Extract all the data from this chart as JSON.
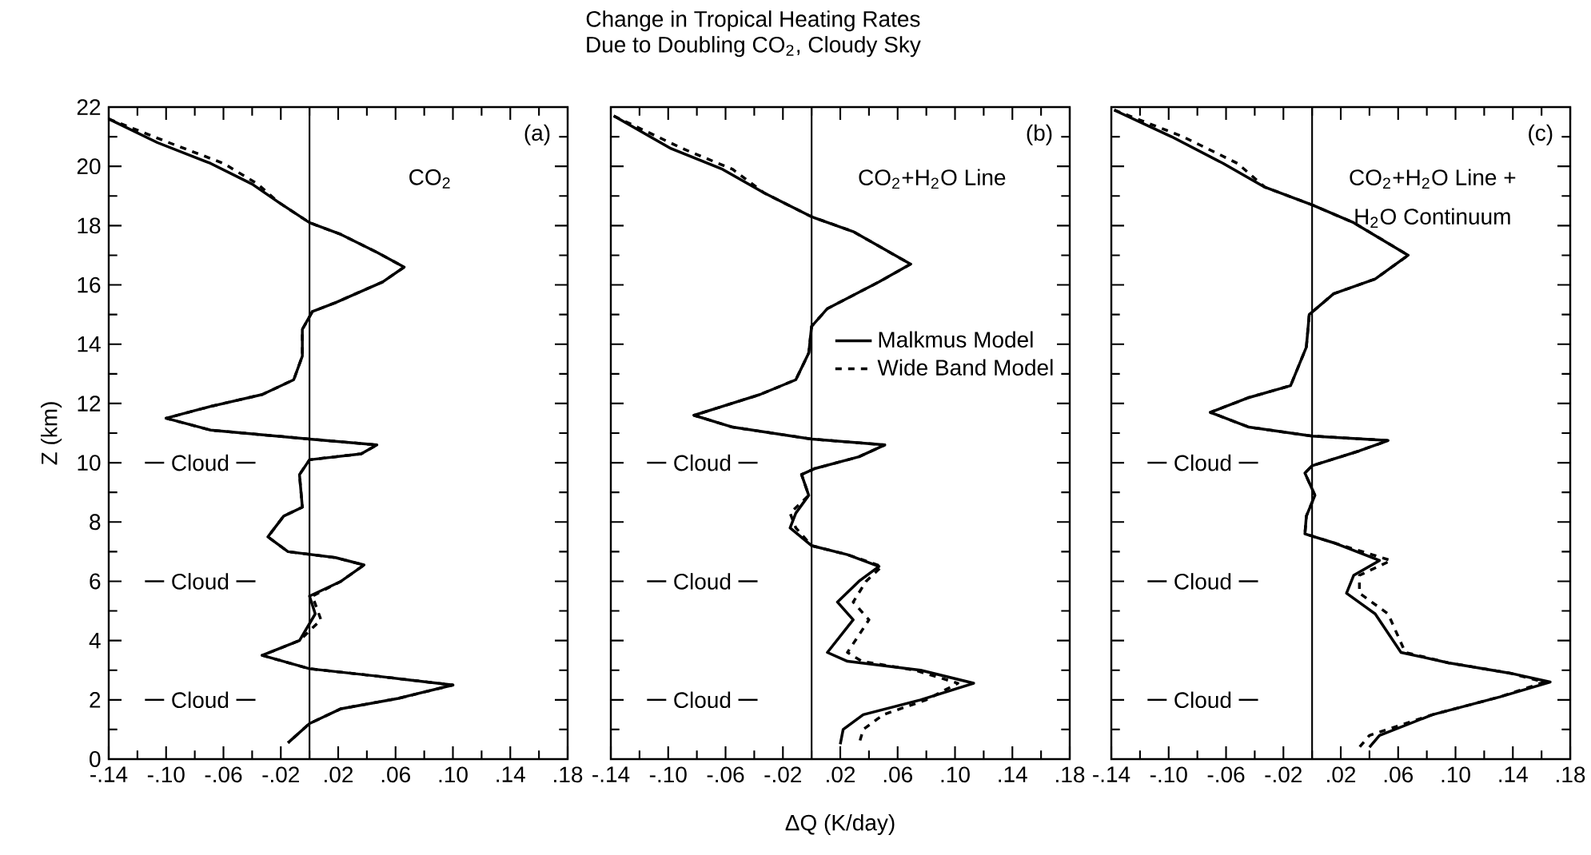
{
  "chart_data": [
    {
      "type": "line",
      "ylabel": "Z (km)",
      "xlim": [
        -0.14,
        0.18
      ],
      "ylim": [
        0,
        22
      ],
      "xticks": [
        {
          "value": -0.14,
          "label": "-.14"
        },
        {
          "value": -0.1,
          "label": "-.10"
        },
        {
          "value": -0.06,
          "label": "-.06"
        },
        {
          "value": -0.02,
          "label": "-.02"
        },
        {
          "value": 0.02,
          "label": ".02"
        },
        {
          "value": 0.06,
          "label": ".06"
        },
        {
          "value": 0.1,
          "label": ".10"
        },
        {
          "value": 0.14,
          "label": ".14"
        },
        {
          "value": 0.18,
          "label": ".18"
        }
      ],
      "yticks": [
        0,
        2,
        4,
        6,
        8,
        10,
        12,
        14,
        16,
        18,
        20,
        22
      ],
      "ref_lines": [
        {
          "axis": "x",
          "value": 0
        },
        {
          "axis": "y",
          "value": 10,
          "label": "Cloud"
        },
        {
          "axis": "y",
          "value": 6,
          "label": "Cloud"
        },
        {
          "axis": "y",
          "value": 2,
          "label": "Cloud"
        }
      ],
      "annotations": [
        "(a)",
        "CO$_{2}$"
      ],
      "series": [
        {
          "color": "#000000",
          "line_style": "solid",
          "x": [
            -0.14,
            -0.106,
            -0.069,
            -0.04,
            -0.022,
            0,
            0.022,
            0.047,
            0.066,
            0.051,
            0.018,
            0.002,
            -0.005,
            -0.005,
            -0.011,
            -0.033,
            -0.069,
            -0.1,
            -0.069,
            0,
            0.047,
            0.036,
            0,
            -0.007,
            -0.005,
            -0.018,
            -0.029,
            -0.015,
            0.018,
            0.038,
            0.022,
            0,
            0.004,
            -0.007,
            -0.033,
            0,
            0.047,
            0.1,
            0.062,
            0.022,
            0,
            -0.015
          ],
          "values": [
            21.6,
            20.8,
            20.1,
            19.4,
            18.8,
            18.1,
            17.7,
            17.1,
            16.6,
            16.1,
            15.4,
            15.1,
            14.5,
            13.6,
            12.8,
            12.3,
            11.9,
            11.5,
            11.1,
            10.8,
            10.6,
            10.3,
            10.1,
            9.6,
            8.5,
            8.2,
            7.5,
            7.0,
            6.8,
            6.55,
            6.0,
            5.5,
            4.9,
            4.0,
            3.5,
            3.05,
            2.8,
            2.5,
            2.05,
            1.7,
            1.2,
            0.55
          ]
        },
        {
          "color": "#000000",
          "line_style": "dashed",
          "x": [
            -0.14,
            -0.098,
            -0.06,
            -0.036,
            -0.022,
            0,
            0.022,
            0.047,
            0.066,
            0.051,
            0.018,
            0.002,
            -0.005,
            -0.005,
            -0.011,
            -0.033,
            -0.069,
            -0.1,
            -0.069,
            0,
            0.047,
            0.036,
            0,
            -0.007,
            -0.005,
            -0.018,
            -0.029,
            -0.015,
            0.018,
            0.038,
            0.022,
            0.002,
            0.008,
            -0.007,
            -0.033,
            0,
            0.047,
            0.1,
            0.062,
            0.022,
            0,
            -0.015
          ],
          "values": [
            21.6,
            20.8,
            20.1,
            19.4,
            18.8,
            18.1,
            17.7,
            17.1,
            16.6,
            16.1,
            15.4,
            15.1,
            14.5,
            13.6,
            12.8,
            12.3,
            11.9,
            11.5,
            11.1,
            10.8,
            10.6,
            10.3,
            10.1,
            9.6,
            8.5,
            8.2,
            7.5,
            7.0,
            6.8,
            6.55,
            6.0,
            5.5,
            4.7,
            4.0,
            3.5,
            3.05,
            2.8,
            2.5,
            2.05,
            1.7,
            1.2,
            0.55
          ]
        }
      ]
    },
    {
      "type": "line",
      "title": "Change in Tropical Heating Rates",
      "subtitle": "Due to Doubling CO$_{2}$, Cloudy Sky",
      "xlabel": "ΔQ (K/day)",
      "xlim": [
        -0.14,
        0.18
      ],
      "ylim": [
        0,
        22
      ],
      "xticks": [
        {
          "value": -0.14,
          "label": "-.14"
        },
        {
          "value": -0.1,
          "label": "-.10"
        },
        {
          "value": -0.06,
          "label": "-.06"
        },
        {
          "value": -0.02,
          "label": "-.02"
        },
        {
          "value": 0.02,
          "label": ".02"
        },
        {
          "value": 0.06,
          "label": ".06"
        },
        {
          "value": 0.1,
          "label": ".10"
        },
        {
          "value": 0.14,
          "label": ".14"
        },
        {
          "value": 0.18,
          "label": ".18"
        }
      ],
      "yticks": [
        0,
        2,
        4,
        6,
        8,
        10,
        12,
        14,
        16,
        18,
        20,
        22
      ],
      "tick_labels": "x",
      "legend": "right",
      "ref_lines": [
        {
          "axis": "x",
          "value": 0
        },
        {
          "axis": "y",
          "value": 10,
          "label": "Cloud"
        },
        {
          "axis": "y",
          "value": 6,
          "label": "Cloud"
        },
        {
          "axis": "y",
          "value": 2,
          "label": "Cloud"
        }
      ],
      "annotations": [
        "(b)",
        "CO$_{2}$+H$_{2}$O Line"
      ],
      "series": [
        {
          "name": "Malkmus Model",
          "color": "#000000",
          "line_style": "solid",
          "x": [
            -0.138,
            -0.098,
            -0.062,
            -0.033,
            0,
            0.029,
            0.069,
            0.047,
            0.011,
            0,
            -0.002,
            -0.011,
            -0.036,
            -0.082,
            -0.055,
            0,
            0.051,
            0.033,
            0.002,
            -0.007,
            -0.002,
            -0.011,
            -0.015,
            0,
            0.025,
            0.047,
            0.033,
            0.018,
            0.029,
            0.011,
            0.025,
            0.076,
            0.113,
            0.076,
            0.036,
            0.022,
            0.02
          ],
          "values": [
            21.7,
            20.6,
            19.9,
            19.1,
            18.3,
            17.8,
            16.7,
            16.1,
            15.2,
            14.6,
            13.7,
            12.8,
            12.3,
            11.6,
            11.2,
            10.8,
            10.6,
            10.2,
            9.8,
            9.6,
            8.9,
            8.3,
            7.8,
            7.2,
            6.9,
            6.5,
            6.0,
            5.3,
            4.7,
            3.6,
            3.3,
            3.0,
            2.56,
            2.0,
            1.5,
            1.0,
            0.5
          ]
        },
        {
          "name": "Wide Band Model",
          "color": "#000000",
          "line_style": "dashed",
          "x": [
            -0.138,
            -0.09,
            -0.055,
            -0.033,
            0,
            0.029,
            0.069,
            0.047,
            0.011,
            0,
            -0.002,
            -0.011,
            -0.036,
            -0.082,
            -0.055,
            0,
            0.051,
            0.033,
            0.002,
            -0.007,
            -0.002,
            -0.015,
            -0.011,
            0,
            0.025,
            0.049,
            0.038,
            0.029,
            0.04,
            0.025,
            0.035,
            0.072,
            0.102,
            0.08,
            0.05,
            0.036,
            0.033
          ],
          "values": [
            21.7,
            20.6,
            19.9,
            19.1,
            18.3,
            17.8,
            16.7,
            16.1,
            15.2,
            14.6,
            13.7,
            12.8,
            12.3,
            11.6,
            11.2,
            10.8,
            10.6,
            10.2,
            9.8,
            9.6,
            8.9,
            8.3,
            7.8,
            7.2,
            6.9,
            6.5,
            6.0,
            5.3,
            4.7,
            3.6,
            3.3,
            3.0,
            2.56,
            2.0,
            1.5,
            1.0,
            0.5
          ]
        }
      ]
    },
    {
      "type": "line",
      "xlim": [
        -0.14,
        0.18
      ],
      "ylim": [
        0,
        22
      ],
      "xticks": [
        {
          "value": -0.14,
          "label": "-.14"
        },
        {
          "value": -0.1,
          "label": "-.10"
        },
        {
          "value": -0.06,
          "label": "-.06"
        },
        {
          "value": -0.02,
          "label": "-.02"
        },
        {
          "value": 0.02,
          "label": ".02"
        },
        {
          "value": 0.06,
          "label": ".06"
        },
        {
          "value": 0.1,
          "label": ".10"
        },
        {
          "value": 0.14,
          "label": ".14"
        },
        {
          "value": 0.18,
          "label": ".18"
        }
      ],
      "yticks": [
        0,
        2,
        4,
        6,
        8,
        10,
        12,
        14,
        16,
        18,
        20,
        22
      ],
      "tick_labels": "x",
      "ref_lines": [
        {
          "axis": "x",
          "value": 0
        },
        {
          "axis": "y",
          "value": 10,
          "label": "Cloud"
        },
        {
          "axis": "y",
          "value": 6,
          "label": "Cloud"
        },
        {
          "axis": "y",
          "value": 2,
          "label": "Cloud"
        }
      ],
      "annotations": [
        "(c)",
        "CO$_{2}$+H$_{2}$O Line +",
        "H$_{2}$O  Continuum"
      ],
      "series": [
        {
          "color": "#000000",
          "line_style": "solid",
          "x": [
            -0.138,
            -0.098,
            -0.062,
            -0.033,
            0,
            0.029,
            0.067,
            0.044,
            0.015,
            -0.002,
            -0.004,
            -0.015,
            -0.044,
            -0.071,
            -0.044,
            0,
            0.053,
            0.033,
            0,
            -0.005,
            0.002,
            -0.004,
            -0.005,
            0.015,
            0.047,
            0.029,
            0.024,
            0.044,
            0.062,
            0.095,
            0.138,
            0.166,
            0.131,
            0.084,
            0.047,
            0.04
          ],
          "values": [
            21.9,
            21.0,
            20.1,
            19.3,
            18.7,
            18.1,
            17.0,
            16.2,
            15.7,
            15.0,
            13.9,
            12.6,
            12.2,
            11.7,
            11.2,
            10.9,
            10.75,
            10.4,
            9.9,
            9.65,
            8.9,
            8.2,
            7.6,
            7.3,
            6.7,
            6.2,
            5.6,
            4.9,
            3.6,
            3.25,
            2.9,
            2.6,
            2.1,
            1.5,
            0.8,
            0.4
          ]
        },
        {
          "color": "#000000",
          "line_style": "dashed",
          "x": [
            -0.138,
            -0.09,
            -0.052,
            -0.033,
            0,
            0.029,
            0.067,
            0.044,
            0.015,
            -0.002,
            -0.004,
            -0.015,
            -0.044,
            -0.071,
            -0.044,
            0,
            0.053,
            0.033,
            0,
            -0.005,
            0.002,
            -0.004,
            -0.005,
            0.015,
            0.055,
            0.033,
            0.033,
            0.053,
            0.065,
            0.095,
            0.138,
            0.162,
            0.131,
            0.084,
            0.04,
            0.033
          ],
          "values": [
            21.9,
            21.0,
            20.1,
            19.3,
            18.7,
            18.1,
            17.0,
            16.2,
            15.7,
            15.0,
            13.9,
            12.6,
            12.2,
            11.7,
            11.2,
            10.9,
            10.75,
            10.4,
            9.9,
            9.65,
            8.9,
            8.2,
            7.6,
            7.3,
            6.7,
            6.2,
            5.6,
            4.9,
            3.6,
            3.25,
            2.9,
            2.6,
            2.1,
            1.5,
            0.8,
            0.4
          ]
        }
      ]
    }
  ]
}
